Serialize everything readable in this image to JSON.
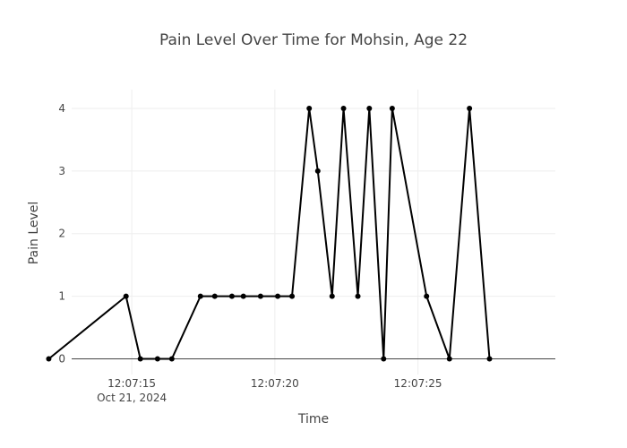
{
  "chart_data": {
    "type": "line",
    "title": "Pain Level Over Time for Mohsin, Age 22",
    "xlabel": "Time",
    "ylabel": "Pain Level",
    "x_date_annotation": "Oct 21, 2024",
    "x_tick_labels": [
      "12:07:15",
      "12:07:20",
      "12:07:25"
    ],
    "y_tick_labels": [
      "0",
      "1",
      "2",
      "3",
      "4"
    ],
    "ylim": [
      -0.25,
      4.3
    ],
    "x_range": [
      "2024-10-21 12:07:12.9",
      "2024-10-21 12:07:29.8"
    ],
    "grid": true,
    "line_color": "#000000",
    "marker_color": "#000000",
    "series": [
      {
        "x": [
          "2024-10-21 12:07:12.1",
          "2024-10-21 12:07:14.8",
          "2024-10-21 12:07:15.3",
          "2024-10-21 12:07:15.9",
          "2024-10-21 12:07:16.4",
          "2024-10-21 12:07:17.4",
          "2024-10-21 12:07:17.9",
          "2024-10-21 12:07:18.5",
          "2024-10-21 12:07:18.9",
          "2024-10-21 12:07:19.5",
          "2024-10-21 12:07:20.1",
          "2024-10-21 12:07:20.6",
          "2024-10-21 12:07:21.2",
          "2024-10-21 12:07:21.5",
          "2024-10-21 12:07:22.0",
          "2024-10-21 12:07:22.4",
          "2024-10-21 12:07:22.9",
          "2024-10-21 12:07:23.3",
          "2024-10-21 12:07:23.8",
          "2024-10-21 12:07:24.1",
          "2024-10-21 12:07:25.3",
          "2024-10-21 12:07:26.1",
          "2024-10-21 12:07:26.8",
          "2024-10-21 12:07:27.5"
        ],
        "y": [
          0,
          1,
          0,
          0,
          0,
          1,
          1,
          1,
          1,
          1,
          1,
          1,
          4,
          3,
          1,
          4,
          1,
          4,
          0,
          4,
          1,
          0,
          4,
          0
        ]
      }
    ]
  }
}
